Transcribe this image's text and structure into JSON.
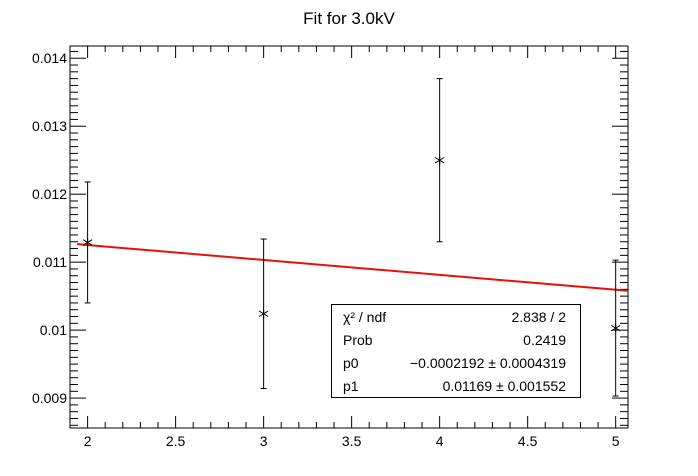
{
  "chart_data": {
    "type": "scatter",
    "title": "Fit for 3.0kV",
    "xlabel": "",
    "ylabel": "",
    "xlim": [
      1.9,
      5.07
    ],
    "ylim": [
      0.00856,
      0.01418
    ],
    "x_ticks": [
      "2",
      "2.5",
      "3",
      "3.5",
      "4",
      "4.5",
      "5"
    ],
    "y_ticks": [
      "0.009",
      "0.01",
      "0.011",
      "0.012",
      "0.013",
      "0.014"
    ],
    "grid": false,
    "legend": "none",
    "marker": "asterisk",
    "points": [
      {
        "x": 2,
        "y": 0.01129,
        "err": 0.00089
      },
      {
        "x": 3,
        "y": 0.01024,
        "err": 0.0011
      },
      {
        "x": 4,
        "y": 0.0125,
        "err": 0.0012
      },
      {
        "x": 5,
        "y": 0.01003,
        "err": 0.001
      }
    ],
    "fit": {
      "function": "linear",
      "p0": -0.0002192,
      "p1": 0.01169,
      "x_range": [
        1.94,
        5.07
      ],
      "color": "#e8100a"
    },
    "stats": {
      "rows": [
        {
          "name": "χ² / ndf",
          "value": "2.838 / 2"
        },
        {
          "name": "Prob",
          "value": "0.2419"
        },
        {
          "name": "p0",
          "value": "−0.0002192 ± 0.0004319"
        },
        {
          "name": "p1",
          "value": "0.01169 ± 0.001552"
        }
      ]
    }
  }
}
